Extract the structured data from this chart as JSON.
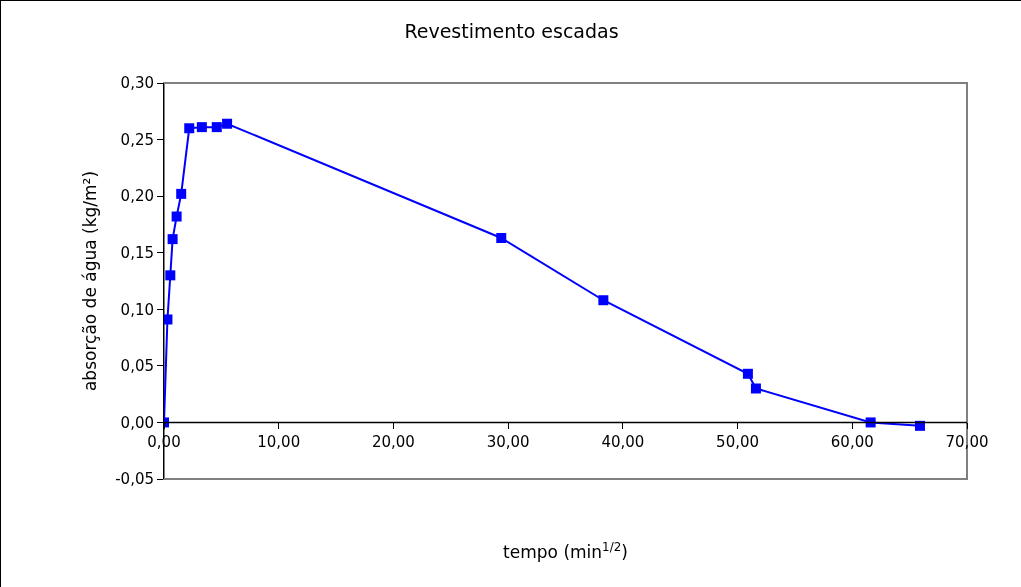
{
  "chart_data": {
    "type": "line",
    "title": "Revestimento escadas",
    "xlabel": "tempo (min$^{1/2}$)",
    "ylabel": "absorção de água (kg/m²)",
    "x": [
      0.0,
      0.3,
      0.55,
      0.75,
      1.1,
      1.5,
      2.2,
      3.3,
      4.6,
      5.5,
      29.4,
      38.3,
      50.9,
      51.6,
      61.6,
      65.9
    ],
    "series": [
      {
        "color": "#0000ff",
        "values": [
          0.0,
          0.091,
          0.13,
          0.162,
          0.182,
          0.202,
          0.26,
          0.261,
          0.261,
          0.264,
          0.163,
          0.108,
          0.043,
          0.03,
          0.0,
          -0.003
        ]
      }
    ],
    "xlim": [
      0,
      70
    ],
    "xticks": [
      {
        "value": 0,
        "label": "0,00"
      },
      {
        "value": 10,
        "label": "10,00"
      },
      {
        "value": 20,
        "label": "20,00"
      },
      {
        "value": 30,
        "label": "30,00"
      },
      {
        "value": 40,
        "label": "40,00"
      },
      {
        "value": 50,
        "label": "50,00"
      },
      {
        "value": 60,
        "label": "60,00"
      },
      {
        "value": 70,
        "label": "70,00"
      }
    ],
    "ylim": [
      -0.05,
      0.3
    ],
    "yticks": [
      {
        "value": -0.05,
        "label": "-0,05"
      },
      {
        "value": 0,
        "label": "0,00"
      },
      {
        "value": 0.05,
        "label": "0,05"
      },
      {
        "value": 0.1,
        "label": "0,10"
      },
      {
        "value": 0.15,
        "label": "0,15"
      },
      {
        "value": 0.2,
        "label": "0,20"
      },
      {
        "value": 0.25,
        "label": "0,25"
      },
      {
        "value": 0.3,
        "label": "0,30"
      }
    ],
    "grid": false,
    "marker": "square",
    "line_style": "solid"
  }
}
